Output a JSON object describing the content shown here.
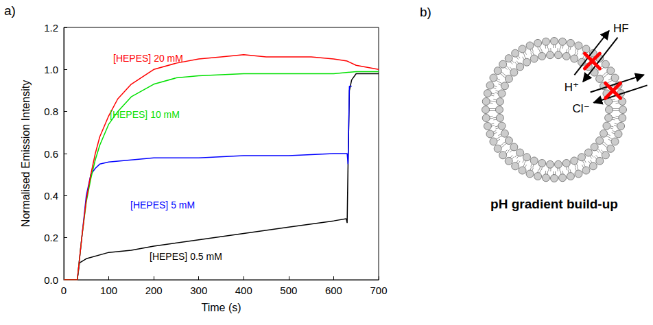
{
  "chart_data": {
    "type": "line",
    "panel_label": "a)",
    "x_label": "Time (s)",
    "y_label": "Normalised Emission Intensity",
    "xlim": [
      0,
      700
    ],
    "xticks": [
      0,
      100,
      200,
      300,
      400,
      500,
      600,
      700
    ],
    "ylim": [
      0,
      1.2
    ],
    "yticks": [
      {
        "value": 0,
        "label": "0.0"
      },
      0.2,
      0.4,
      0.6,
      0.8,
      {
        "value": 1,
        "label": "1.0"
      },
      1.2
    ],
    "grid": false,
    "series": [
      {
        "name": "[HEPES] 20 mM",
        "color": "#ff0000",
        "x": [
          0,
          30,
          40,
          50,
          60,
          70,
          80,
          100,
          120,
          150,
          200,
          250,
          300,
          350,
          400,
          450,
          500,
          550,
          600,
          630,
          650,
          700
        ],
        "values": [
          0,
          0,
          0.2,
          0.38,
          0.5,
          0.6,
          0.68,
          0.78,
          0.86,
          0.93,
          1.0,
          1.03,
          1.05,
          1.06,
          1.07,
          1.06,
          1.06,
          1.06,
          1.05,
          1.04,
          1.02,
          1.0
        ]
      },
      {
        "name": "[HEPES] 10 mM",
        "color": "#00e000",
        "x": [
          0,
          30,
          40,
          50,
          60,
          70,
          80,
          100,
          120,
          150,
          200,
          250,
          300,
          400,
          500,
          600,
          650,
          700
        ],
        "values": [
          0,
          0,
          0.2,
          0.37,
          0.48,
          0.57,
          0.64,
          0.74,
          0.8,
          0.87,
          0.93,
          0.96,
          0.97,
          0.98,
          0.98,
          0.98,
          0.99,
          0.99
        ]
      },
      {
        "name": "[HEPES] 5 mM",
        "color": "#0000ff",
        "x": [
          0,
          30,
          40,
          50,
          60,
          70,
          80,
          100,
          150,
          200,
          300,
          400,
          500,
          600,
          630,
          632,
          635,
          640
        ],
        "values": [
          0,
          0,
          0.2,
          0.4,
          0.5,
          0.53,
          0.55,
          0.56,
          0.57,
          0.58,
          0.58,
          0.59,
          0.59,
          0.6,
          0.6,
          0.55,
          0.92,
          0.92
        ]
      },
      {
        "name": "[HEPES] 0.5 mM",
        "color": "#000000",
        "x": [
          0,
          30,
          35,
          50,
          100,
          150,
          200,
          300,
          400,
          500,
          600,
          628,
          630,
          632,
          635,
          640,
          650,
          700
        ],
        "values": [
          0,
          0,
          0.08,
          0.1,
          0.13,
          0.14,
          0.16,
          0.19,
          0.22,
          0.25,
          0.28,
          0.29,
          0.27,
          0.55,
          0.9,
          0.95,
          0.98,
          0.98
        ]
      }
    ]
  },
  "diagram": {
    "panel_label": "b)",
    "labels": {
      "hf": "HF",
      "proton": "H⁺",
      "chloride": "Cl⁻"
    },
    "caption": "pH gradient build-up"
  }
}
